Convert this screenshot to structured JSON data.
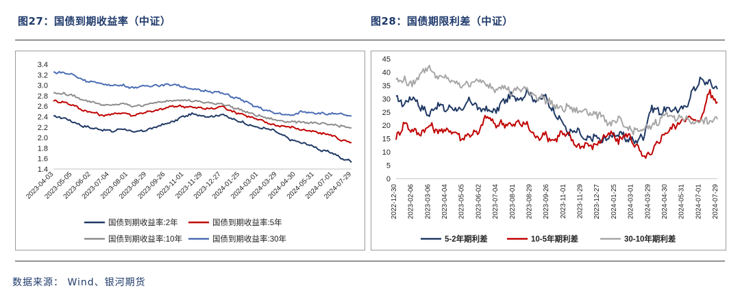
{
  "figures": {
    "left_title": "图27：国债到期收益率（中证）",
    "right_title": "图28：国债期限利差（中证）"
  },
  "source_note": "数据来源：  Wind、银河期货",
  "chart_data": [
    {
      "type": "line",
      "ylim": [
        1.4,
        3.4
      ],
      "yticks": [
        "3.4",
        "3.2",
        "3.0",
        "2.8",
        "2.6",
        "2.4",
        "2.2",
        "2.0",
        "1.8",
        "1.6",
        "1.4"
      ],
      "xticks": [
        "2023-04-03",
        "2023-05-05",
        "2023-06-02",
        "2023-07-04",
        "2023-08-01",
        "2023-08-29",
        "2023-09-26",
        "2023-11-01",
        "2023-11-29",
        "2023-12-27",
        "2024-01-25",
        "2024-03-01",
        "2024-03-29",
        "2024-04-30",
        "2024-05-31",
        "2024-07-01",
        "2024-07-29"
      ],
      "legend_position": "bottom",
      "series": [
        {
          "name": "国债到期收益率:2年",
          "color": "#1f3864",
          "values": [
            2.4,
            2.38,
            2.3,
            2.22,
            2.18,
            2.15,
            2.12,
            2.18,
            2.1,
            2.13,
            2.18,
            2.25,
            2.3,
            2.4,
            2.45,
            2.42,
            2.4,
            2.45,
            2.35,
            2.3,
            2.22,
            2.18,
            2.15,
            2.05,
            1.95,
            1.9,
            1.85,
            1.75,
            1.72,
            1.6,
            1.55
          ]
        },
        {
          "name": "国债到期收益率:5年",
          "color": "#c00000",
          "values": [
            2.7,
            2.68,
            2.62,
            2.52,
            2.48,
            2.42,
            2.45,
            2.48,
            2.42,
            2.48,
            2.5,
            2.55,
            2.6,
            2.6,
            2.58,
            2.56,
            2.55,
            2.6,
            2.5,
            2.45,
            2.38,
            2.32,
            2.25,
            2.22,
            2.2,
            2.15,
            2.12,
            2.08,
            2.05,
            1.95,
            1.9
          ]
        },
        {
          "name": "国债到期收益率:10年",
          "color": "#8c8c8c",
          "values": [
            2.85,
            2.84,
            2.8,
            2.72,
            2.68,
            2.62,
            2.62,
            2.65,
            2.6,
            2.62,
            2.66,
            2.68,
            2.72,
            2.72,
            2.7,
            2.68,
            2.65,
            2.65,
            2.58,
            2.52,
            2.45,
            2.4,
            2.35,
            2.32,
            2.3,
            2.3,
            2.28,
            2.26,
            2.25,
            2.22,
            2.18
          ]
        },
        {
          "name": "国债到期收益率:30年",
          "color": "#4a6cb3",
          "values": [
            3.25,
            3.24,
            3.2,
            3.1,
            3.06,
            3.02,
            3.0,
            3.0,
            2.95,
            2.98,
            3.0,
            3.0,
            3.02,
            2.98,
            2.92,
            2.9,
            2.88,
            2.85,
            2.78,
            2.72,
            2.62,
            2.55,
            2.48,
            2.45,
            2.42,
            2.5,
            2.48,
            2.46,
            2.45,
            2.45,
            2.4
          ]
        }
      ]
    },
    {
      "type": "line",
      "ylim": [
        0,
        45
      ],
      "yticks": [
        "45",
        "40",
        "35",
        "30",
        "25",
        "20",
        "15",
        "10",
        "5",
        "0"
      ],
      "xticks": [
        "2022-12-30",
        "2023-02-06",
        "2023-03-06",
        "2023-04-04",
        "2023-05-05",
        "2023-06-02",
        "2023-07-04",
        "2023-08-01",
        "2023-08-29",
        "2023-09-26",
        "2023-11-01",
        "2023-11-29",
        "2023-12-27",
        "2024-01-25",
        "2024-03-01",
        "2024-03-29",
        "2024-04-30",
        "2024-05-31",
        "2024-07-01",
        "2024-07-29"
      ],
      "legend_position": "bottom",
      "series": [
        {
          "name": "5-2年期利差",
          "color": "#1f3864",
          "values": [
            30,
            28,
            31,
            27,
            24,
            28,
            26,
            27,
            25,
            30,
            26,
            26,
            25,
            29,
            31,
            30,
            33,
            29,
            31,
            26,
            22,
            17,
            18,
            14,
            16,
            14,
            16,
            17,
            15,
            14,
            16,
            27,
            25,
            26,
            26,
            26,
            33,
            37,
            36,
            34
          ]
        },
        {
          "name": "10-5年期利差",
          "color": "#c00000",
          "values": [
            15,
            21,
            18,
            17,
            20,
            18,
            18,
            18,
            15,
            17,
            17,
            24,
            20,
            21,
            20,
            21,
            20,
            15,
            17,
            14,
            17,
            16,
            12,
            13,
            12,
            15,
            17,
            14,
            17,
            13,
            8,
            9,
            15,
            18,
            20,
            23,
            22,
            22,
            33,
            28
          ]
        },
        {
          "name": "30-10年期利差",
          "color": "#a6a6a6",
          "values": [
            37,
            37,
            35,
            40,
            42,
            38,
            38,
            36,
            35,
            36,
            37,
            35,
            34,
            35,
            32,
            34,
            33,
            31,
            30,
            28,
            26,
            27,
            25,
            26,
            24,
            24,
            20,
            22,
            19,
            18,
            18,
            20,
            22,
            25,
            22,
            23,
            21,
            22,
            21,
            23
          ]
        }
      ]
    }
  ]
}
